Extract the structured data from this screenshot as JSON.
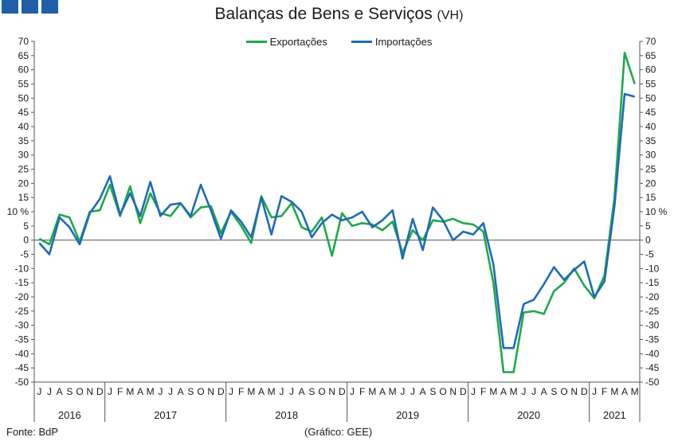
{
  "header": {
    "title": "Balanças de Bens e Serviços",
    "unit": "(VH)"
  },
  "footer": {
    "source": "Fonte: BdP",
    "credit": "(Gráfico: GEE)"
  },
  "colors": {
    "exports": "#1ea84a",
    "imports": "#1f6bb5",
    "logo": "#1f5fa8"
  },
  "chart_data": {
    "type": "line",
    "title": "Balanças de Bens e Serviços (VH)",
    "ylabel": "%",
    "ylabel_right": "%",
    "ylim": [
      -50,
      70
    ],
    "yticks": [
      70,
      65,
      60,
      55,
      50,
      45,
      40,
      35,
      30,
      25,
      20,
      15,
      10,
      5,
      0,
      -5,
      -10,
      -15,
      -20,
      -25,
      -30,
      -35,
      -40,
      -45,
      -50
    ],
    "ytick_labels_left": [
      "70",
      "65",
      "60",
      "55",
      "50",
      "45",
      "40",
      "35",
      "30",
      "25",
      "20",
      "15",
      "10 %",
      "5",
      "0",
      "-5",
      "-10",
      "-15",
      "-20",
      "-25",
      "-30",
      "-35",
      "-40",
      "-45",
      "-50"
    ],
    "ytick_labels_right": [
      "70",
      "65",
      "60",
      "55",
      "50",
      "45",
      "40",
      "35",
      "30",
      "25",
      "20",
      "15",
      "10 %",
      "5",
      "0",
      "-5",
      "-10",
      "-15",
      "-20",
      "-25",
      "-30",
      "-35",
      "-40",
      "-45",
      "-50"
    ],
    "legend_position": "top-center",
    "grid": false,
    "months": [
      "J",
      "J",
      "A",
      "S",
      "O",
      "N",
      "D",
      "J",
      "F",
      "M",
      "A",
      "M",
      "J",
      "J",
      "A",
      "S",
      "O",
      "N",
      "D",
      "J",
      "F",
      "M",
      "A",
      "M",
      "J",
      "J",
      "A",
      "S",
      "O",
      "N",
      "D",
      "J",
      "F",
      "M",
      "A",
      "M",
      "J",
      "J",
      "A",
      "S",
      "O",
      "N",
      "D",
      "J",
      "F",
      "M",
      "A",
      "M",
      "J",
      "J",
      "A",
      "S",
      "O",
      "N",
      "D",
      "J",
      "F",
      "M",
      "A",
      "M"
    ],
    "years": [
      {
        "label": "2016",
        "count": 7
      },
      {
        "label": "2017",
        "count": 12
      },
      {
        "label": "2018",
        "count": 12
      },
      {
        "label": "2019",
        "count": 12
      },
      {
        "label": "2020",
        "count": 12
      },
      {
        "label": "2021",
        "count": 5
      }
    ],
    "series": [
      {
        "name": "Exportações",
        "values": [
          0.5,
          -1.5,
          9,
          8,
          -0.5,
          10,
          10.5,
          19.5,
          8.5,
          19,
          6,
          16.5,
          9.5,
          8.5,
          13,
          8,
          11.5,
          12,
          2.5,
          10,
          5,
          -1,
          15.5,
          8,
          8.5,
          13,
          4.5,
          3,
          8,
          -5.5,
          9.5,
          5,
          6,
          5.5,
          3.5,
          6.5,
          -4.5,
          3.5,
          0,
          7,
          6.5,
          7.5,
          6,
          5.5,
          3,
          -15,
          -46.5,
          -46.5,
          -25.5,
          -25,
          -26,
          -18,
          -15,
          -10,
          -16,
          -20.5,
          -12.5,
          15,
          66,
          55
        ]
      },
      {
        "name": "Importações",
        "values": [
          -1,
          -5,
          8,
          4.5,
          -1.5,
          9.5,
          14.5,
          22.5,
          9,
          16.5,
          8.5,
          20.5,
          8.5,
          12.5,
          13,
          8.5,
          19.5,
          10.5,
          0.5,
          10.5,
          6.5,
          1,
          15,
          2,
          15.5,
          13.5,
          10,
          1,
          6,
          9,
          7,
          8,
          10,
          4.5,
          7,
          10.5,
          -6.5,
          7.5,
          -3.5,
          11.5,
          7,
          0,
          3,
          2,
          6,
          -8.5,
          -38,
          -38,
          -22.5,
          -21,
          -15.5,
          -9.5,
          -14,
          -10.5,
          -7.5,
          -20,
          -14.5,
          12,
          51.5,
          50.5
        ]
      }
    ]
  }
}
